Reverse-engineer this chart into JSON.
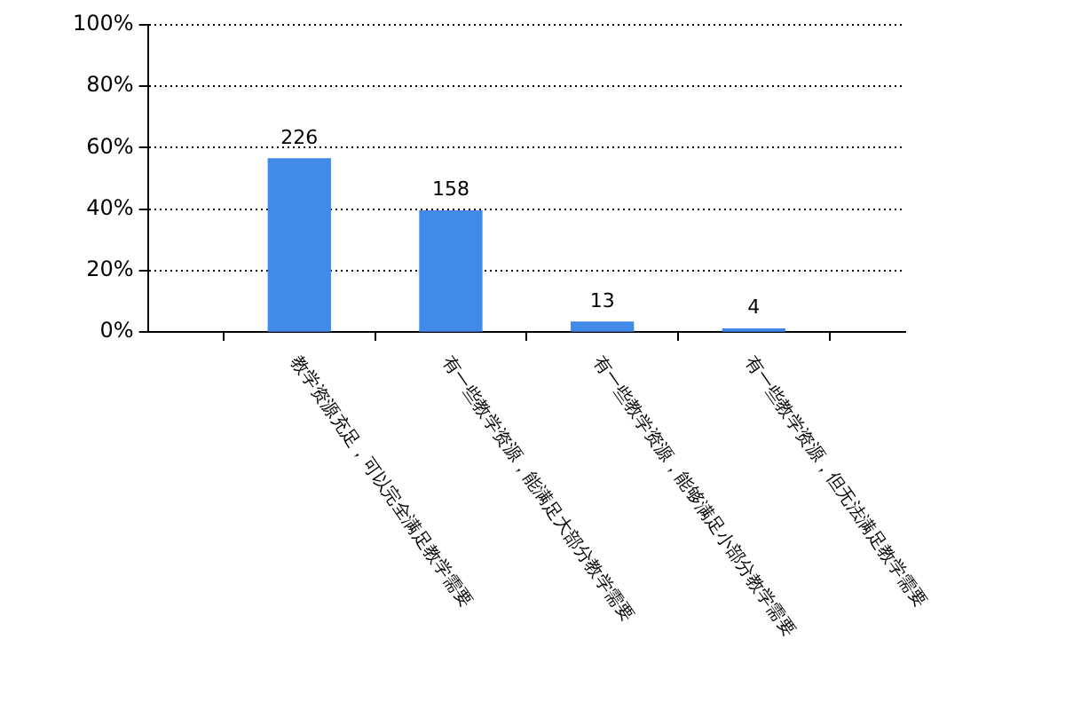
{
  "chart_data": {
    "type": "bar",
    "categories": [
      "教学资源充足，可以完全满足教学需要",
      "有一些教学资源，能满足大部分教学需要",
      "有一些教学资源，能够满足小部分教学需要",
      "有一些教学资源，但无法满足教学需要"
    ],
    "values": [
      56.4,
      39.4,
      3.2,
      1.0
    ],
    "annotations": [
      {
        "text": "226",
        "x": "教学资源充足，可以完全满足教学需要",
        "y": 56.4
      },
      {
        "text": "158",
        "x": "有一些教学资源，能满足大部分教学需要",
        "y": 39.4
      },
      {
        "text": "13",
        "x": "有一些教学资源，能够满足小部分教学需要",
        "y": 3.2
      },
      {
        "text": "4",
        "x": "有一些教学资源，但无法满足教学需要",
        "y": 1.0
      }
    ],
    "color": "#418ae9",
    "ylim": [
      0,
      100
    ],
    "yticks": [
      {
        "value": 0,
        "label": "0%"
      },
      {
        "value": 20,
        "label": "20%"
      },
      {
        "value": 40,
        "label": "40%"
      },
      {
        "value": 60,
        "label": "60%"
      },
      {
        "value": 80,
        "label": "80%"
      },
      {
        "value": 100,
        "label": "100%"
      }
    ],
    "grid": "y",
    "legend": false
  }
}
